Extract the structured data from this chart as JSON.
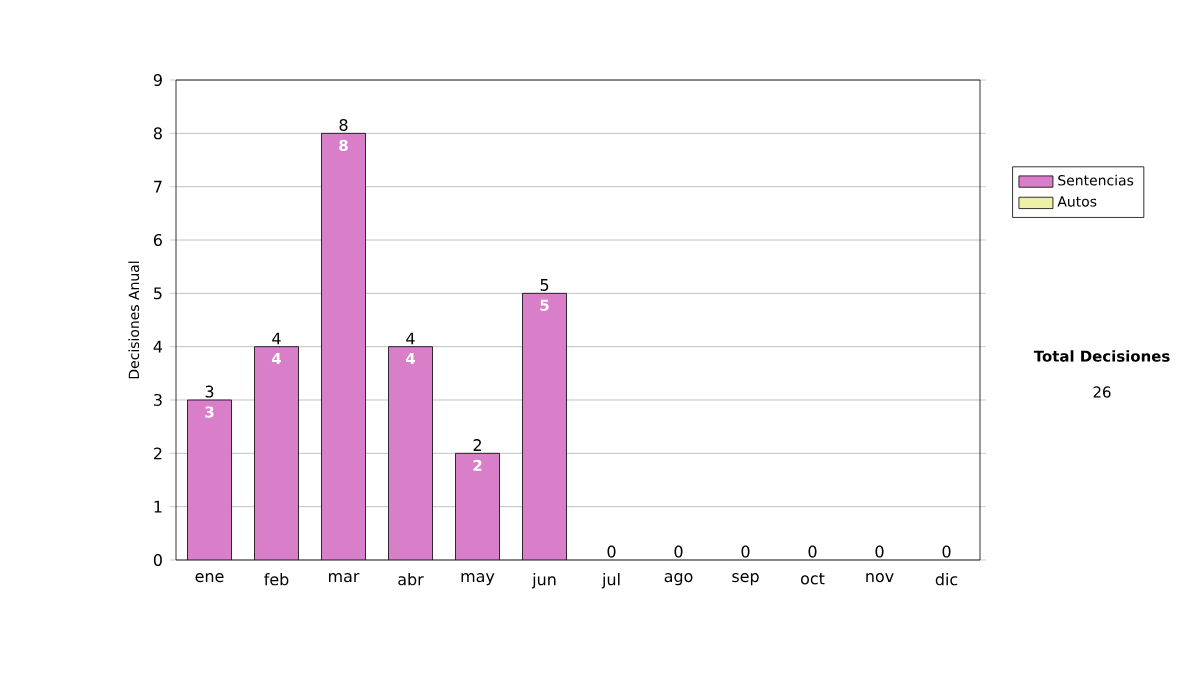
{
  "chart_data": {
    "type": "bar",
    "stacked": true,
    "ylabel": "Decisiones Anual",
    "categories": [
      "ene",
      "feb",
      "mar",
      "abr",
      "may",
      "jun",
      "jul",
      "ago",
      "sep",
      "oct",
      "nov",
      "dic"
    ],
    "series": [
      {
        "name": "Sentencias",
        "color": "#d97fc9",
        "values": [
          3,
          4,
          8,
          4,
          2,
          5,
          0,
          0,
          0,
          0,
          0,
          0
        ],
        "value_labels": [
          "3",
          "4",
          "8",
          "4",
          "2",
          "5",
          null,
          null,
          null,
          null,
          null,
          null
        ]
      },
      {
        "name": "Autos",
        "color": "#eef0a8",
        "values": [
          0,
          0,
          0,
          0,
          0,
          0,
          0,
          0,
          0,
          0,
          0,
          0
        ]
      }
    ],
    "totals": [
      "3",
      "4",
      "8",
      "4",
      "2",
      "5",
      "0",
      "0",
      "0",
      "0",
      "0",
      "0"
    ],
    "ylim": [
      0,
      9
    ],
    "yticks": [
      0,
      1,
      2,
      3,
      4,
      5,
      6,
      7,
      8,
      9
    ],
    "grid": "y",
    "legend": "right",
    "annotations": [
      "Total Decisiones",
      "26"
    ]
  }
}
